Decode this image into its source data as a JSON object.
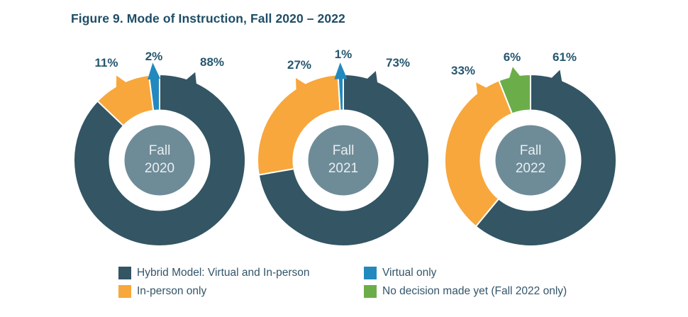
{
  "title": "Figure 9. Mode of Instruction, Fall 2020 – 2022",
  "colors": {
    "hybrid": "#335564",
    "in_person": "#F8A73C",
    "virtual": "#2289BE",
    "no_decision": "#6BAE49",
    "center_circle": "#6E8C98",
    "center_text": "#E9EEF0",
    "pct_label": "#26566E",
    "title_text": "#1E4D66",
    "legend_text": "#33556A"
  },
  "chart_data": [
    {
      "type": "pie",
      "title": "Fall 2020",
      "center_label_line1": "Fall",
      "center_label_line2": "2020",
      "slices": [
        {
          "name": "Hybrid Model: Virtual and In-person",
          "value": 88,
          "label": "88%",
          "color_key": "hybrid"
        },
        {
          "name": "In-person only",
          "value": 11,
          "label": "11%",
          "color_key": "in_person"
        },
        {
          "name": "Virtual only",
          "value": 2,
          "label": "2%",
          "color_key": "virtual"
        }
      ]
    },
    {
      "type": "pie",
      "title": "Fall 2021",
      "center_label_line1": "Fall",
      "center_label_line2": "2021",
      "slices": [
        {
          "name": "Hybrid Model: Virtual and In-person",
          "value": 73,
          "label": "73%",
          "color_key": "hybrid"
        },
        {
          "name": "In-person only",
          "value": 27,
          "label": "27%",
          "color_key": "in_person"
        },
        {
          "name": "Virtual only",
          "value": 1,
          "label": "1%",
          "color_key": "virtual"
        }
      ]
    },
    {
      "type": "pie",
      "title": "Fall 2022",
      "center_label_line1": "Fall",
      "center_label_line2": "2022",
      "slices": [
        {
          "name": "Hybrid Model: Virtual and In-person",
          "value": 61,
          "label": "61%",
          "color_key": "hybrid"
        },
        {
          "name": "In-person only",
          "value": 33,
          "label": "33%",
          "color_key": "in_person"
        },
        {
          "name": "No decision made yet (Fall 2022 only)",
          "value": 6,
          "label": "6%",
          "color_key": "no_decision"
        }
      ]
    }
  ],
  "legend": {
    "items": [
      {
        "label": "Hybrid Model: Virtual and In-person",
        "color_key": "hybrid"
      },
      {
        "label": "In-person only",
        "color_key": "in_person"
      },
      {
        "label": "Virtual only",
        "color_key": "virtual"
      },
      {
        "label": "No decision made yet (Fall 2022 only)",
        "color_key": "no_decision"
      }
    ]
  }
}
